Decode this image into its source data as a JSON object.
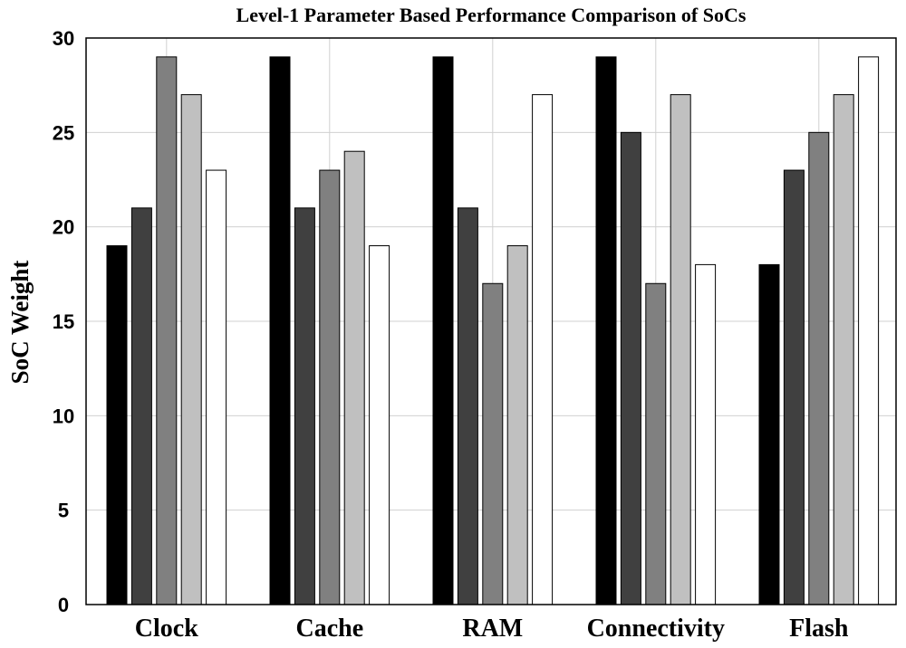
{
  "chart_data": {
    "type": "bar",
    "title": "Level-1 Parameter Based Performance Comparison of SoCs",
    "xlabel": "",
    "ylabel": "SoC Weight",
    "ylim": [
      0,
      30
    ],
    "yticks": [
      "0",
      "5",
      "10",
      "15",
      "20",
      "25",
      "30"
    ],
    "grid": true,
    "legend": "none",
    "categories": [
      "Clock",
      "Cache",
      "RAM",
      "Connectivity",
      "Flash"
    ],
    "series": [
      {
        "values": [
          19,
          29,
          29,
          29,
          18
        ],
        "color": "#000000"
      },
      {
        "values": [
          21,
          21,
          21,
          25,
          23
        ],
        "color": "#404040"
      },
      {
        "values": [
          29,
          23,
          17,
          17,
          25
        ],
        "color": "#808080"
      },
      {
        "values": [
          27,
          24,
          19,
          27,
          27
        ],
        "color": "#c0c0c0"
      },
      {
        "values": [
          23,
          19,
          27,
          18,
          29
        ],
        "color": "#ffffff"
      }
    ]
  }
}
